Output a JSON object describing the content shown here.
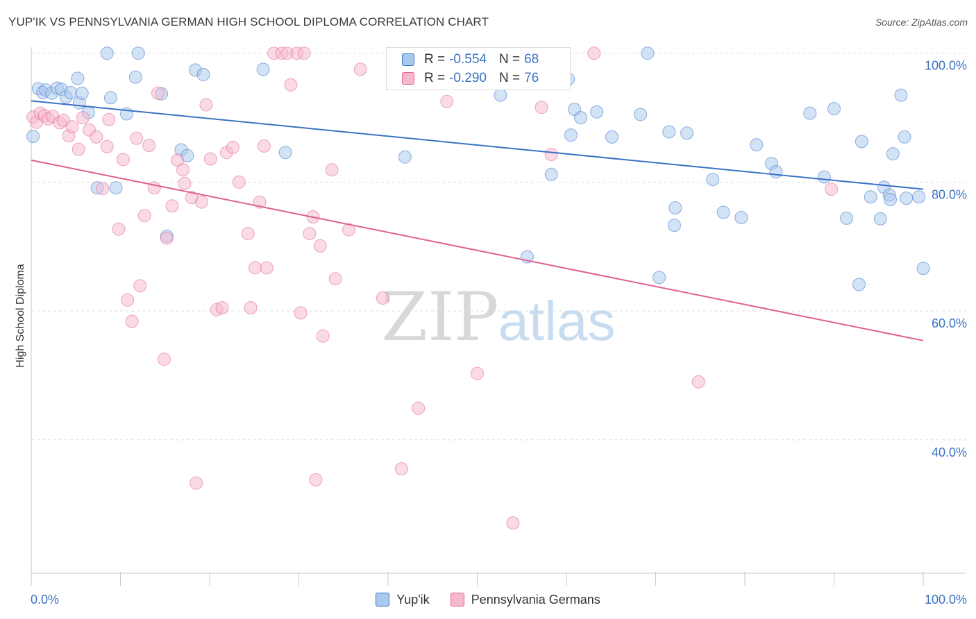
{
  "header": {
    "title": "YUP'IK VS PENNSYLVANIA GERMAN HIGH SCHOOL DIPLOMA CORRELATION CHART",
    "source": "Source: ZipAtlas.com"
  },
  "colors": {
    "blue": "#3a72c4",
    "blue_fill": "#a8c8ee",
    "pink": "#e06090",
    "pink_fill": "#f5b8cc",
    "grid": "#dddddd",
    "watermark": "#d8d8d8",
    "watermark_atlas": "#c8dcf0"
  },
  "watermark": {
    "zip": "ZIP",
    "atlas": "atlas"
  },
  "legend_top": {
    "rows": [
      {
        "label": "R = ",
        "r_value": "-0.554",
        "n_label": "N = ",
        "n_value": "68",
        "series": "blue"
      },
      {
        "label": "R = ",
        "r_value": "-0.290",
        "n_label": "N = ",
        "n_value": "76",
        "series": "pink"
      }
    ]
  },
  "legend_bottom": {
    "items": [
      {
        "name": "Yup'ik",
        "series": "blue"
      },
      {
        "name": "Pennsylvania Germans",
        "series": "pink"
      }
    ]
  },
  "chart_data": {
    "type": "scatter",
    "title": "YUP'IK VS PENNSYLVANIA GERMAN HIGH SCHOOL DIPLOMA CORRELATION CHART",
    "xlabel": "",
    "ylabel": "High School Diploma",
    "xlim": [
      0,
      100
    ],
    "ylim": [
      19.3,
      101.8
    ],
    "x_tick_labels": [
      {
        "value": 0,
        "label": "0.0%"
      },
      {
        "value": 100,
        "label": "100.0%"
      }
    ],
    "y_tick_labels": [
      {
        "value": 40,
        "label": "40.0%"
      },
      {
        "value": 60,
        "label": "60.0%"
      },
      {
        "value": 80,
        "label": "80.0%"
      },
      {
        "value": 100,
        "label": "100.0%"
      }
    ],
    "x_minor_ticks": [
      0,
      10,
      20,
      30,
      40,
      50,
      60,
      70,
      80,
      90,
      100
    ],
    "grid": true,
    "series": [
      {
        "name": "Yup'ik",
        "color": "#3a72c4",
        "r": -0.554,
        "n": 68,
        "trend": {
          "x": [
            0,
            100
          ],
          "y": [
            92.6,
            78.9
          ]
        },
        "points": [
          [
            0.2,
            87.1
          ],
          [
            0.8,
            94.5
          ],
          [
            1.3,
            93.9
          ],
          [
            1.6,
            94.3
          ],
          [
            2.3,
            93.8
          ],
          [
            2.9,
            94.6
          ],
          [
            3.4,
            94.4
          ],
          [
            3.9,
            93.2
          ],
          [
            4.4,
            93.9
          ],
          [
            5.2,
            96.1
          ],
          [
            5.4,
            92.3
          ],
          [
            5.7,
            93.8
          ],
          [
            6.4,
            90.8
          ],
          [
            7.4,
            79.1
          ],
          [
            8.5,
            100.0
          ],
          [
            8.9,
            93.1
          ],
          [
            9.5,
            79.1
          ],
          [
            10.7,
            90.6
          ],
          [
            11.7,
            96.3
          ],
          [
            12.0,
            100.0
          ],
          [
            14.6,
            93.7
          ],
          [
            15.2,
            71.6
          ],
          [
            16.8,
            85.0
          ],
          [
            17.5,
            84.1
          ],
          [
            18.4,
            97.4
          ],
          [
            19.3,
            96.7
          ],
          [
            26.0,
            97.5
          ],
          [
            28.5,
            84.6
          ],
          [
            41.9,
            83.9
          ],
          [
            52.6,
            93.5
          ],
          [
            55.6,
            68.4
          ],
          [
            58.3,
            81.2
          ],
          [
            60.2,
            96.0
          ],
          [
            60.5,
            87.3
          ],
          [
            60.9,
            91.3
          ],
          [
            61.6,
            90.0
          ],
          [
            63.4,
            90.9
          ],
          [
            65.1,
            87.0
          ],
          [
            68.3,
            90.5
          ],
          [
            69.1,
            100.0
          ],
          [
            70.4,
            65.2
          ],
          [
            71.5,
            87.8
          ],
          [
            72.2,
            76.0
          ],
          [
            72.1,
            73.3
          ],
          [
            73.5,
            87.6
          ],
          [
            76.4,
            80.4
          ],
          [
            77.6,
            75.3
          ],
          [
            79.6,
            74.5
          ],
          [
            81.3,
            85.8
          ],
          [
            83.0,
            82.9
          ],
          [
            83.5,
            81.6
          ],
          [
            87.3,
            90.7
          ],
          [
            88.9,
            80.8
          ],
          [
            90.0,
            91.4
          ],
          [
            91.4,
            74.4
          ],
          [
            92.8,
            64.1
          ],
          [
            95.2,
            74.3
          ],
          [
            93.1,
            86.3
          ],
          [
            94.1,
            77.7
          ],
          [
            95.6,
            79.2
          ],
          [
            96.2,
            78.0
          ],
          [
            96.3,
            77.3
          ],
          [
            96.6,
            84.4
          ],
          [
            97.5,
            93.5
          ],
          [
            98.1,
            77.5
          ],
          [
            97.9,
            87.0
          ],
          [
            99.5,
            77.7
          ],
          [
            100.0,
            66.6
          ]
        ]
      },
      {
        "name": "Pennsylvania Germans",
        "color": "#e06090",
        "r": -0.29,
        "n": 76,
        "trend": {
          "x": [
            0,
            100
          ],
          "y": [
            83.4,
            55.4
          ]
        },
        "points": [
          [
            0.2,
            90.1
          ],
          [
            0.6,
            89.3
          ],
          [
            1.0,
            90.7
          ],
          [
            1.5,
            90.3
          ],
          [
            1.9,
            89.8
          ],
          [
            2.4,
            90.2
          ],
          [
            3.2,
            89.2
          ],
          [
            3.6,
            89.6
          ],
          [
            4.2,
            87.2
          ],
          [
            4.6,
            88.6
          ],
          [
            5.3,
            85.1
          ],
          [
            5.8,
            90.0
          ],
          [
            6.5,
            88.1
          ],
          [
            7.3,
            87.0
          ],
          [
            8.0,
            79.0
          ],
          [
            8.5,
            85.5
          ],
          [
            8.7,
            89.7
          ],
          [
            9.8,
            72.7
          ],
          [
            10.3,
            83.5
          ],
          [
            10.8,
            61.7
          ],
          [
            11.3,
            58.4
          ],
          [
            11.8,
            86.8
          ],
          [
            12.2,
            63.9
          ],
          [
            12.7,
            74.8
          ],
          [
            13.2,
            85.7
          ],
          [
            13.8,
            79.1
          ],
          [
            14.2,
            93.8
          ],
          [
            14.9,
            52.5
          ],
          [
            15.2,
            71.3
          ],
          [
            15.8,
            76.3
          ],
          [
            16.4,
            83.4
          ],
          [
            17.0,
            81.9
          ],
          [
            17.2,
            79.8
          ],
          [
            18.0,
            77.6
          ],
          [
            18.5,
            33.3
          ],
          [
            19.1,
            76.9
          ],
          [
            19.6,
            92.0
          ],
          [
            20.1,
            83.6
          ],
          [
            20.8,
            60.2
          ],
          [
            21.4,
            60.5
          ],
          [
            21.9,
            84.6
          ],
          [
            22.6,
            85.4
          ],
          [
            23.3,
            80.0
          ],
          [
            24.3,
            72.0
          ],
          [
            24.6,
            60.5
          ],
          [
            25.1,
            66.7
          ],
          [
            25.6,
            76.9
          ],
          [
            26.1,
            85.6
          ],
          [
            26.4,
            66.7
          ],
          [
            27.2,
            100.0
          ],
          [
            28.1,
            100.0
          ],
          [
            28.7,
            100.0
          ],
          [
            29.1,
            95.1
          ],
          [
            29.8,
            100.0
          ],
          [
            30.2,
            59.7
          ],
          [
            30.6,
            100.0
          ],
          [
            31.2,
            72.0
          ],
          [
            31.6,
            74.6
          ],
          [
            31.9,
            33.8
          ],
          [
            32.4,
            70.1
          ],
          [
            32.7,
            56.1
          ],
          [
            33.7,
            81.9
          ],
          [
            34.1,
            65.0
          ],
          [
            35.6,
            72.6
          ],
          [
            36.9,
            97.5
          ],
          [
            39.4,
            62.0
          ],
          [
            41.5,
            35.5
          ],
          [
            43.4,
            44.9
          ],
          [
            46.6,
            92.5
          ],
          [
            50.0,
            50.3
          ],
          [
            54.0,
            27.1
          ],
          [
            57.2,
            91.6
          ],
          [
            58.3,
            84.3
          ],
          [
            63.1,
            100.0
          ],
          [
            74.8,
            49.0
          ],
          [
            89.7,
            78.9
          ]
        ]
      }
    ]
  }
}
